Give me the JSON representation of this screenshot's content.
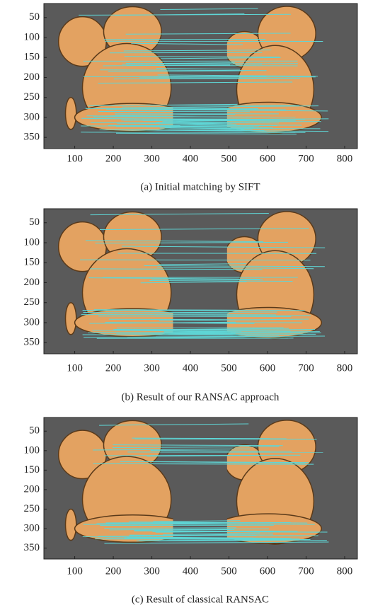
{
  "chart_data": [
    {
      "type": "image",
      "title": "(a)  Initial matching by SIFT",
      "xlim": [
        20,
        833
      ],
      "ylim": [
        378,
        15
      ],
      "xticks": [
        100,
        200,
        300,
        400,
        500,
        600,
        700,
        800
      ],
      "yticks": [
        50,
        100,
        150,
        200,
        250,
        300,
        350
      ]
    },
    {
      "type": "image",
      "title": "(b)  Result of our RANSAC approach",
      "xlim": [
        20,
        833
      ],
      "ylim": [
        378,
        15
      ],
      "xticks": [
        100,
        200,
        300,
        400,
        500,
        600,
        700,
        800
      ],
      "yticks": [
        50,
        100,
        150,
        200,
        250,
        300,
        350
      ]
    },
    {
      "type": "image",
      "title": "(c)  Result of classical RANSAC",
      "xlim": [
        20,
        833
      ],
      "ylim": [
        378,
        15
      ],
      "xticks": [
        100,
        200,
        300,
        400,
        500,
        600,
        700,
        800
      ],
      "yticks": [
        50,
        100,
        150,
        200,
        250,
        300,
        350
      ]
    }
  ]
}
